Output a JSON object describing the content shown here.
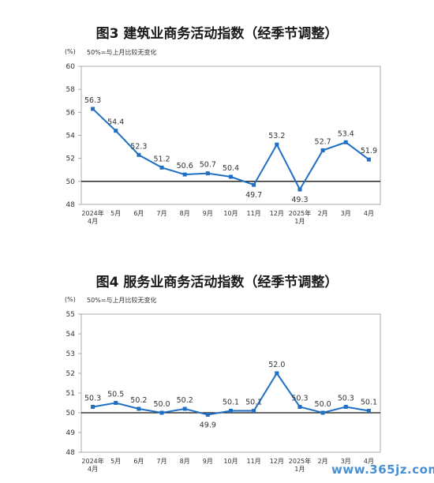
{
  "watermark": "www.365jz.com",
  "chart_data": [
    {
      "type": "line",
      "title": "图3  建筑业商务活动指数（经季节调整）",
      "unit_label": "(%)",
      "reference_note": "50%=与上月比较无变化",
      "categories": [
        "2024年\n4月",
        "5月",
        "6月",
        "7月",
        "8月",
        "9月",
        "10月",
        "11月",
        "12月",
        "2025年\n1月",
        "2月",
        "3月",
        "4月"
      ],
      "values": [
        56.3,
        54.4,
        52.3,
        51.2,
        50.6,
        50.7,
        50.4,
        49.7,
        53.2,
        49.3,
        52.7,
        53.4,
        51.9
      ],
      "ylim": [
        48,
        60
      ],
      "yticks": [
        48,
        50,
        52,
        54,
        56,
        58,
        60
      ],
      "reference_line": 50,
      "label_below": [
        7,
        9
      ],
      "color": "#1f6fc5"
    },
    {
      "type": "line",
      "title": "图4  服务业商务活动指数（经季节调整）",
      "unit_label": "(%)",
      "reference_note": "50%=与上月比较无变化",
      "categories": [
        "2024年\n4月",
        "5月",
        "6月",
        "7月",
        "8月",
        "9月",
        "10月",
        "11月",
        "12月",
        "2025年\n1月",
        "2月",
        "3月",
        "4月"
      ],
      "values": [
        50.3,
        50.5,
        50.2,
        50.0,
        50.2,
        49.9,
        50.1,
        50.1,
        52.0,
        50.3,
        50.0,
        50.3,
        50.1
      ],
      "ylim": [
        48,
        55
      ],
      "yticks": [
        48,
        49,
        50,
        51,
        52,
        53,
        54,
        55
      ],
      "reference_line": 50,
      "label_below": [
        5
      ],
      "color": "#1f6fc5"
    }
  ]
}
